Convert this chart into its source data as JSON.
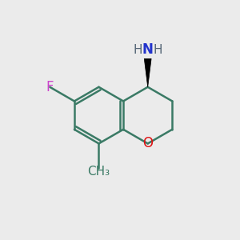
{
  "bg_color": "#ebebeb",
  "bond_color": "#3a7a65",
  "bond_width": 1.8,
  "atom_colors": {
    "F": "#cc44cc",
    "O": "#dd1111",
    "N": "#2233cc",
    "H": "#556677",
    "C": "#3a7a65"
  },
  "font_size": 12,
  "wedge_color": "#000000"
}
